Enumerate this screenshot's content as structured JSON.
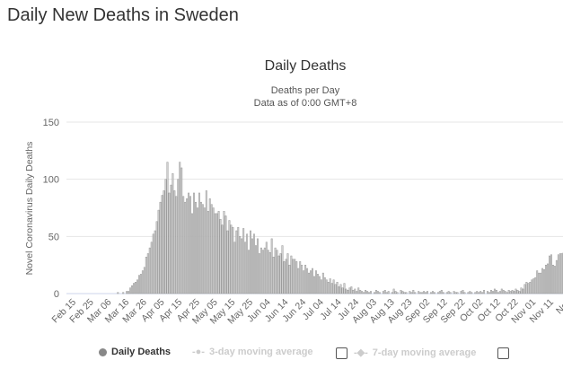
{
  "page_title": "Daily New Deaths in Sweden",
  "chart_data": {
    "type": "bar",
    "title": "Daily Deaths",
    "subtitle_lines": [
      "Deaths per Day",
      "Data as of 0:00 GMT+8"
    ],
    "ylabel": "Novel Coronavirus Daily Deaths",
    "xlabel": "",
    "ylim": [
      0,
      150
    ],
    "yticks": [
      0,
      50,
      100,
      150
    ],
    "grid": true,
    "legend_position": "bottom",
    "xtick_labels": [
      "Feb 15",
      "Feb 25",
      "Mar 06",
      "Mar 16",
      "Mar 26",
      "Apr 05",
      "Apr 15",
      "Apr 25",
      "May 05",
      "May 15",
      "May 25",
      "Jun 04",
      "Jun 14",
      "Jun 24",
      "Jul 04",
      "Jul 14",
      "Jul 24",
      "Aug 03",
      "Aug 13",
      "Aug 23",
      "Sep 02",
      "Sep 12",
      "Sep 22",
      "Oct 02",
      "Oct 12",
      "Oct 22",
      "Nov 01",
      "Nov 11",
      "Nov"
    ],
    "bar_color": "#cfcfcf",
    "bar_edge_color": "#8a8a8a",
    "series": [
      {
        "name": "Daily Deaths",
        "daily": [
          {
            "month": "Feb",
            "first_day": 15,
            "values": [
              0,
              0,
              0,
              0,
              0,
              0,
              0,
              0,
              0,
              0,
              0,
              0,
              0,
              0,
              0
            ]
          },
          {
            "month": "Mar",
            "first_day": 1,
            "values": [
              0,
              0,
              0,
              0,
              0,
              0,
              0,
              0,
              0,
              0,
              1,
              0,
              0,
              1,
              0,
              2,
              2,
              5,
              7,
              9,
              10,
              12,
              16,
              17,
              20,
              23,
              32,
              35,
              40,
              45,
              52
            ]
          },
          {
            "month": "Apr",
            "first_day": 1,
            "values": [
              55,
              63,
              73,
              80,
              86,
              90,
              100,
              115,
              88,
              95,
              105,
              90,
              85,
              100,
              115,
              110,
              85,
              80,
              83,
              88,
              85,
              70,
              88,
              80,
              75,
              88,
              80,
              78,
              75,
              90
            ]
          },
          {
            "month": "May",
            "first_day": 1,
            "values": [
              72,
              83,
              78,
              75,
              70,
              70,
              72,
              65,
              60,
              72,
              68,
              55,
              64,
              60,
              58,
              45,
              55,
              58,
              50,
              48,
              57,
              45,
              52,
              38,
              55,
              48,
              52,
              42,
              48,
              35,
              40
            ]
          },
          {
            "month": "Jun",
            "first_day": 1,
            "values": [
              38,
              40,
              45,
              38,
              36,
              48,
              32,
              40,
              38,
              33,
              35,
              42,
              28,
              30,
              35,
              25,
              33,
              30,
              30,
              28,
              22,
              28,
              25,
              20,
              25,
              22,
              18,
              20,
              22,
              15
            ]
          },
          {
            "month": "Jul",
            "first_day": 1,
            "values": [
              20,
              17,
              15,
              12,
              18,
              14,
              12,
              10,
              13,
              9,
              12,
              8,
              10,
              6,
              8,
              5,
              9,
              4,
              3,
              5,
              6,
              3,
              4,
              2,
              5,
              3,
              2,
              1,
              3,
              2,
              1
            ]
          },
          {
            "month": "Aug",
            "first_day": 1,
            "values": [
              2,
              0,
              1,
              3,
              2,
              1,
              0,
              2,
              3,
              1,
              2,
              0,
              1,
              4,
              2,
              1,
              0,
              3,
              2,
              1,
              1,
              0,
              2,
              1,
              3,
              1,
              0,
              2,
              1,
              1,
              2
            ]
          },
          {
            "month": "Sep",
            "first_day": 1,
            "values": [
              1,
              2,
              0,
              1,
              2,
              1,
              0,
              1,
              2,
              3,
              1,
              0,
              1,
              2,
              1,
              0,
              2,
              1,
              1,
              0,
              2,
              3,
              1,
              0,
              1,
              2,
              1,
              0,
              1,
              2
            ]
          },
          {
            "month": "Oct",
            "first_day": 1,
            "values": [
              1,
              2,
              1,
              3,
              0,
              2,
              1,
              3,
              2,
              4,
              3,
              1,
              2,
              4,
              3,
              2,
              1,
              3,
              2,
              3,
              2,
              4,
              3,
              2,
              5,
              4,
              8,
              10,
              9,
              10,
              12
            ]
          },
          {
            "month": "Nov",
            "first_day": 1,
            "values": [
              13,
              14,
              20,
              18,
              18,
              22,
              21,
              25,
              26,
              33,
              34,
              25,
              24,
              29,
              34,
              35,
              35,
              36
            ]
          }
        ]
      }
    ]
  },
  "legend": {
    "daily_label": "Daily Deaths",
    "avg3_label": "3-day moving average",
    "avg7_label": "7-day moving average"
  }
}
